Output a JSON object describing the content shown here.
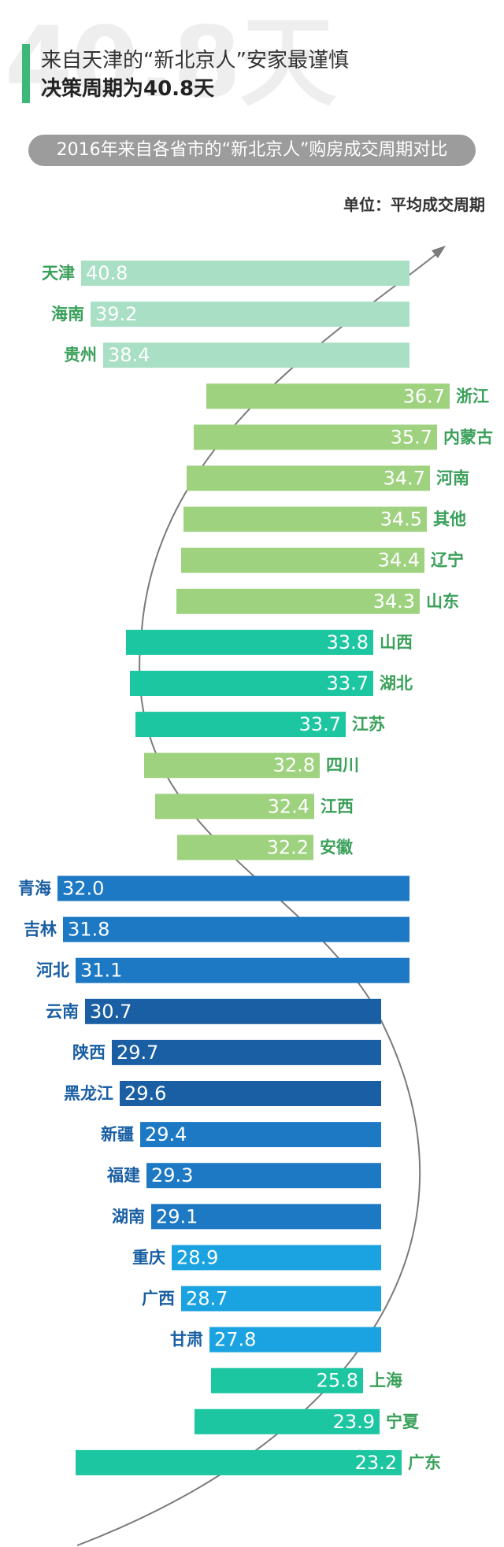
{
  "header": {
    "watermark": "40.8天",
    "line1": "来自天津的“新北京人”安家最谨慎",
    "line2": "决策周期为40.8天",
    "subtitle": "2016年来自各省市的“新北京人”购房成交周期对比",
    "unit": "单位：平均成交周期",
    "accent_color": "#3cb878"
  },
  "colors": {
    "mint": "#a9dfc4",
    "light_green": "#9ed27f",
    "teal": "#1cc6a1",
    "blue": "#1d79c4",
    "dark_blue": "#1a5fa3",
    "sky_blue": "#1aa3e0",
    "label_green": "#3aa05a",
    "label_blue": "#1a5fa3",
    "curve": "#7a7a7a"
  },
  "chart_data": {
    "type": "bar",
    "title": "2016年来自各省市的“新北京人”购房成交周期对比",
    "unit": "单位：平均成交周期",
    "categories": [
      "天津",
      "海南",
      "贵州",
      "浙江",
      "内蒙古",
      "河南",
      "其他",
      "辽宁",
      "山东",
      "山西",
      "湖北",
      "江苏",
      "四川",
      "江西",
      "安徽",
      "青海",
      "吉林",
      "河北",
      "云南",
      "陕西",
      "黑龙江",
      "新疆",
      "福建",
      "湖南",
      "重庆",
      "广西",
      "甘肃",
      "上海",
      "宁夏",
      "广东"
    ],
    "values": [
      40.8,
      39.2,
      38.4,
      36.7,
      35.7,
      34.7,
      34.5,
      34.4,
      34.3,
      33.8,
      33.7,
      33.7,
      32.8,
      32.4,
      32.2,
      32.0,
      31.8,
      31.1,
      30.7,
      29.7,
      29.6,
      29.4,
      29.3,
      29.1,
      28.9,
      28.7,
      27.8,
      25.8,
      23.9,
      23.2
    ],
    "value_labels": [
      "40.8",
      "39.2",
      "38.4",
      "36.7",
      "35.7",
      "34.7",
      "34.5",
      "34.4",
      "34.3",
      "33.8",
      "33.7",
      "33.7",
      "32.8",
      "32.4",
      "32.2",
      "32.0",
      "31.8",
      "31.1",
      "30.7",
      "29.7",
      "29.6",
      "29.4",
      "29.3",
      "29.1",
      "28.9",
      "28.7",
      "27.8",
      "25.8",
      "23.9",
      "23.2"
    ],
    "bar_colors": [
      "mint",
      "mint",
      "mint",
      "light_green",
      "light_green",
      "light_green",
      "light_green",
      "light_green",
      "light_green",
      "teal",
      "teal",
      "teal",
      "light_green",
      "light_green",
      "light_green",
      "blue",
      "blue",
      "blue",
      "dark_blue",
      "dark_blue",
      "dark_blue",
      "blue",
      "blue",
      "blue",
      "sky_blue",
      "sky_blue",
      "sky_blue",
      "teal",
      "teal",
      "teal"
    ]
  }
}
